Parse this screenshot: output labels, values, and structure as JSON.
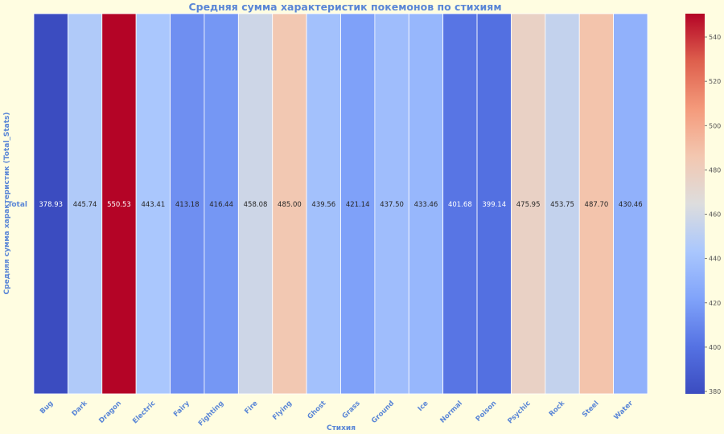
{
  "chart_data": {
    "type": "heatmap",
    "title": "Средняя сумма характеристик покемонов по стихиям",
    "xlabel": "Стихия",
    "ylabel": "Средняя сумма характеристик (Total_Stats)",
    "row_labels": [
      "Total"
    ],
    "categories": [
      "Bug",
      "Dark",
      "Dragon",
      "Electric",
      "Fairy",
      "Fighting",
      "Fire",
      "Flying",
      "Ghost",
      "Grass",
      "Ground",
      "Ice",
      "Normal",
      "Poison",
      "Psychic",
      "Rock",
      "Steel",
      "Water"
    ],
    "values": [
      378.93,
      445.74,
      550.53,
      443.41,
      413.18,
      416.44,
      458.08,
      485.0,
      439.56,
      421.14,
      437.5,
      433.46,
      401.68,
      399.14,
      475.95,
      453.75,
      487.7,
      430.46
    ],
    "value_labels": [
      "378.93",
      "445.74",
      "550.53",
      "443.41",
      "413.18",
      "416.44",
      "458.08",
      "485.00",
      "439.56",
      "421.14",
      "437.50",
      "433.46",
      "401.68",
      "399.14",
      "475.95",
      "453.75",
      "487.70",
      "430.46"
    ],
    "colormap": "coolwarm",
    "color_range": [
      378.93,
      550.53
    ],
    "colorbar_ticks": [
      380,
      400,
      420,
      440,
      460,
      480,
      500,
      520,
      540
    ],
    "colors": {
      "background": "#fffde1",
      "label": "#5a86d6",
      "cmap_low": "#3b4cc0",
      "cmap_mid": "#dddddd",
      "cmap_high": "#b40426"
    }
  }
}
